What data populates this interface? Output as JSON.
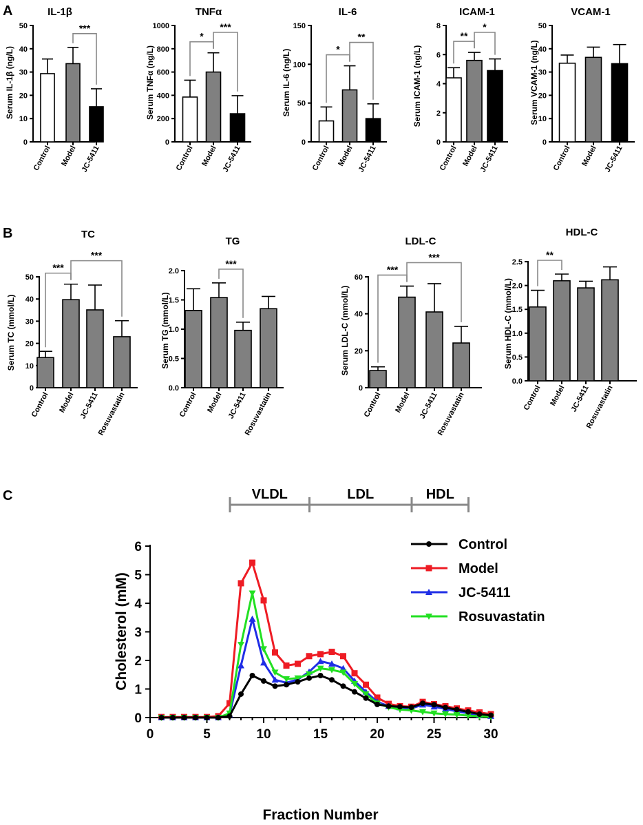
{
  "panels": {
    "A": "A",
    "B": "B",
    "C": "C"
  },
  "colors": {
    "white": "#ffffff",
    "grey": "#808080",
    "black": "#000000"
  },
  "chart_data": [
    {
      "id": "il1b",
      "type": "bar",
      "title": "IL-1β",
      "ylabel": "Serum IL-1β (ng/L)",
      "categories": [
        "Control",
        "Model",
        "JC-5411"
      ],
      "values": [
        29.3,
        33.6,
        15.1
      ],
      "errors": [
        6.3,
        7.0,
        7.7
      ],
      "fills": [
        "white",
        "grey",
        "black"
      ],
      "ylim": [
        0,
        50
      ],
      "yticks": [
        0,
        10,
        20,
        30,
        40,
        50
      ],
      "tick_labels": [
        "0",
        "10",
        "20",
        "30",
        "40",
        "50"
      ],
      "significance": [
        {
          "from": 1,
          "to": 2,
          "label": "***"
        }
      ]
    },
    {
      "id": "tnfa",
      "type": "bar",
      "title": "TNFα",
      "ylabel": "Serum TNFα (ng/L)",
      "categories": [
        "Control",
        "Model",
        "JC-5411"
      ],
      "values": [
        385,
        600,
        242
      ],
      "errors": [
        145,
        165,
        155
      ],
      "fills": [
        "white",
        "grey",
        "black"
      ],
      "ylim": [
        0,
        1000
      ],
      "yticks": [
        0,
        200,
        400,
        600,
        800,
        1000
      ],
      "tick_labels": [
        "0",
        "200",
        "400",
        "600",
        "800",
        "1000"
      ],
      "significance": [
        {
          "from": 0,
          "to": 1,
          "label": "*"
        },
        {
          "from": 1,
          "to": 2,
          "label": "***"
        }
      ]
    },
    {
      "id": "il6",
      "type": "bar",
      "title": "IL-6",
      "ylabel": "Serum IL-6 (ng/L)",
      "categories": [
        "Control",
        "Model",
        "JC-5411"
      ],
      "values": [
        27,
        67,
        30
      ],
      "errors": [
        18,
        31,
        19
      ],
      "fills": [
        "white",
        "grey",
        "black"
      ],
      "ylim": [
        0,
        150
      ],
      "yticks": [
        0,
        50,
        100,
        150
      ],
      "tick_labels": [
        "0",
        "50",
        "100",
        "150"
      ],
      "significance": [
        {
          "from": 0,
          "to": 1,
          "label": "*"
        },
        {
          "from": 1,
          "to": 2,
          "label": "**"
        }
      ]
    },
    {
      "id": "icam1",
      "type": "bar",
      "title": "ICAM-1",
      "ylabel": "Serum ICAM-1 (ng/L)",
      "categories": [
        "Control",
        "Model",
        "JC-5411"
      ],
      "values": [
        4.4,
        5.6,
        4.9
      ],
      "errors": [
        0.7,
        0.55,
        0.8
      ],
      "fills": [
        "white",
        "grey",
        "black"
      ],
      "ylim": [
        0,
        8
      ],
      "yticks": [
        0,
        2,
        4,
        6,
        8
      ],
      "tick_labels": [
        "0",
        "2",
        "4",
        "6",
        "8"
      ],
      "significance": [
        {
          "from": 0,
          "to": 1,
          "label": "**"
        },
        {
          "from": 1,
          "to": 2,
          "label": "*"
        }
      ]
    },
    {
      "id": "vcam1",
      "type": "bar",
      "title": "VCAM-1",
      "ylabel": "Serum VCAM-1 (ng/L)",
      "categories": [
        "Control",
        "Model",
        "JC-5411"
      ],
      "values": [
        33.8,
        36.3,
        33.6
      ],
      "errors": [
        3.5,
        4.4,
        8.2
      ],
      "fills": [
        "white",
        "grey",
        "black"
      ],
      "ylim": [
        0,
        50
      ],
      "yticks": [
        0,
        10,
        20,
        30,
        40,
        50
      ],
      "tick_labels": [
        "0",
        "10",
        "20",
        "30",
        "40",
        "50"
      ],
      "significance": []
    },
    {
      "id": "tc",
      "type": "bar",
      "title": "TC",
      "ylabel": "Serum TC (mmol/L)",
      "categories": [
        "Control",
        "Model",
        "JC-5411",
        "Rosuvastatin"
      ],
      "values": [
        13.6,
        39.7,
        35.1,
        23.0
      ],
      "errors": [
        2.8,
        7.0,
        11.2,
        7.2
      ],
      "fills": [
        "grey",
        "grey",
        "grey",
        "grey"
      ],
      "ylim": [
        0,
        50
      ],
      "yticks": [
        0,
        10,
        20,
        30,
        40,
        50
      ],
      "tick_labels": [
        "0",
        "10",
        "20",
        "30",
        "40",
        "50"
      ],
      "significance": [
        {
          "from": 0,
          "to": 1,
          "label": "***"
        },
        {
          "from": 1,
          "to": 3,
          "label": "***"
        }
      ]
    },
    {
      "id": "tg",
      "type": "bar",
      "title": "TG",
      "ylabel": "Serum TG (mmol/L)",
      "categories": [
        "Control",
        "Model",
        "JC-5411",
        "Rosuvastatin"
      ],
      "values": [
        1.32,
        1.54,
        0.98,
        1.35
      ],
      "errors": [
        0.37,
        0.25,
        0.14,
        0.21
      ],
      "fills": [
        "grey",
        "grey",
        "grey",
        "grey"
      ],
      "ylim": [
        0,
        2.0
      ],
      "yticks": [
        0,
        0.5,
        1.0,
        1.5,
        2.0
      ],
      "tick_labels": [
        "0.0",
        "0.5",
        "1.0",
        "1.5",
        "2.0"
      ],
      "significance": [
        {
          "from": 1,
          "to": 2,
          "label": "***"
        }
      ]
    },
    {
      "id": "ldlc",
      "type": "bar",
      "title": "LDL-C",
      "ylabel": "Serum LDL-C (mmol/L)",
      "categories": [
        "Control",
        "Model",
        "JC-5411",
        "Rosuvastatin"
      ],
      "values": [
        9.3,
        49,
        41,
        24.2
      ],
      "errors": [
        2.0,
        6.0,
        15.3,
        9.0
      ],
      "fills": [
        "grey",
        "grey",
        "grey",
        "grey"
      ],
      "ylim": [
        0,
        60
      ],
      "yticks": [
        0,
        20,
        40,
        60
      ],
      "tick_labels": [
        "0",
        "20",
        "40",
        "60"
      ],
      "significance": [
        {
          "from": 0,
          "to": 1,
          "label": "***"
        },
        {
          "from": 1,
          "to": 3,
          "label": "***"
        }
      ]
    },
    {
      "id": "hdlc",
      "type": "bar",
      "title": "HDL-C",
      "ylabel": "Serum HDL-C (mmol/L)",
      "categories": [
        "Control",
        "Model",
        "JC-5411",
        "Rosuvastatin"
      ],
      "values": [
        1.55,
        2.1,
        1.95,
        2.12
      ],
      "errors": [
        0.35,
        0.14,
        0.14,
        0.27
      ],
      "fills": [
        "grey",
        "grey",
        "grey",
        "grey"
      ],
      "ylim": [
        0,
        2.5
      ],
      "yticks": [
        0,
        0.5,
        1.0,
        1.5,
        2.0,
        2.5
      ],
      "tick_labels": [
        "0.0",
        "0.5",
        "1.0",
        "1.5",
        "2.0",
        "2.5"
      ],
      "significance": [
        {
          "from": 0,
          "to": 1,
          "label": "**"
        }
      ]
    },
    {
      "id": "fplc",
      "type": "line",
      "xlabel": "Fraction Number",
      "ylabel": "Cholesterol (mM)",
      "xlim": [
        0,
        30
      ],
      "ylim": [
        0,
        6
      ],
      "xticks": [
        0,
        5,
        10,
        15,
        20,
        25,
        30
      ],
      "x_tick_labels": [
        "0",
        "5",
        "10",
        "15",
        "20",
        "25",
        "30"
      ],
      "yticks": [
        0,
        1,
        2,
        3,
        4,
        5,
        6
      ],
      "y_tick_labels": [
        "0",
        "1",
        "2",
        "3",
        "4",
        "5",
        "6"
      ],
      "ranges": [
        {
          "label": "VLDL",
          "from": 6,
          "to": 13
        },
        {
          "label": "LDL",
          "from": 13,
          "to": 22
        },
        {
          "label": "HDL",
          "from": 22,
          "to": 27
        }
      ],
      "x": [
        1,
        2,
        3,
        4,
        5,
        6,
        7,
        8,
        9,
        10,
        11,
        12,
        13,
        14,
        15,
        16,
        17,
        18,
        19,
        20,
        21,
        22,
        23,
        24,
        25,
        26,
        27,
        28,
        29,
        30
      ],
      "series": [
        {
          "name": "Control",
          "color": "#000000",
          "marker": "circle",
          "values": [
            0,
            0,
            0,
            0,
            0,
            0,
            0.05,
            0.82,
            1.47,
            1.28,
            1.1,
            1.15,
            1.25,
            1.38,
            1.47,
            1.32,
            1.1,
            0.9,
            0.68,
            0.46,
            0.4,
            0.38,
            0.36,
            0.5,
            0.45,
            0.35,
            0.28,
            0.2,
            0.12,
            0.08
          ]
        },
        {
          "name": "Model",
          "color": "#ee1c24",
          "marker": "square",
          "values": [
            0.02,
            0.02,
            0.02,
            0.02,
            0.02,
            0.05,
            0.5,
            4.7,
            5.42,
            4.1,
            2.28,
            1.82,
            1.88,
            2.15,
            2.22,
            2.3,
            2.15,
            1.55,
            1.15,
            0.7,
            0.48,
            0.4,
            0.38,
            0.55,
            0.47,
            0.4,
            0.32,
            0.25,
            0.18,
            0.12
          ]
        },
        {
          "name": "JC-5411",
          "color": "#1f2ee6",
          "marker": "triangle-up",
          "values": [
            0,
            0,
            0,
            0,
            0,
            0,
            0.1,
            1.82,
            3.45,
            1.92,
            1.32,
            1.22,
            1.33,
            1.6,
            1.97,
            1.88,
            1.72,
            1.28,
            0.9,
            0.55,
            0.4,
            0.35,
            0.32,
            0.45,
            0.38,
            0.3,
            0.22,
            0.15,
            0.08,
            0.05
          ]
        },
        {
          "name": "Rosuvastatin",
          "color": "#22e022",
          "marker": "triangle-down",
          "values": [
            0,
            0,
            0,
            0,
            0,
            0,
            0.15,
            2.55,
            4.35,
            2.4,
            1.58,
            1.35,
            1.38,
            1.52,
            1.72,
            1.67,
            1.58,
            1.18,
            0.82,
            0.5,
            0.36,
            0.28,
            0.25,
            0.2,
            0.15,
            0.12,
            0.1,
            0.07,
            0.04,
            0.03
          ]
        }
      ]
    }
  ]
}
